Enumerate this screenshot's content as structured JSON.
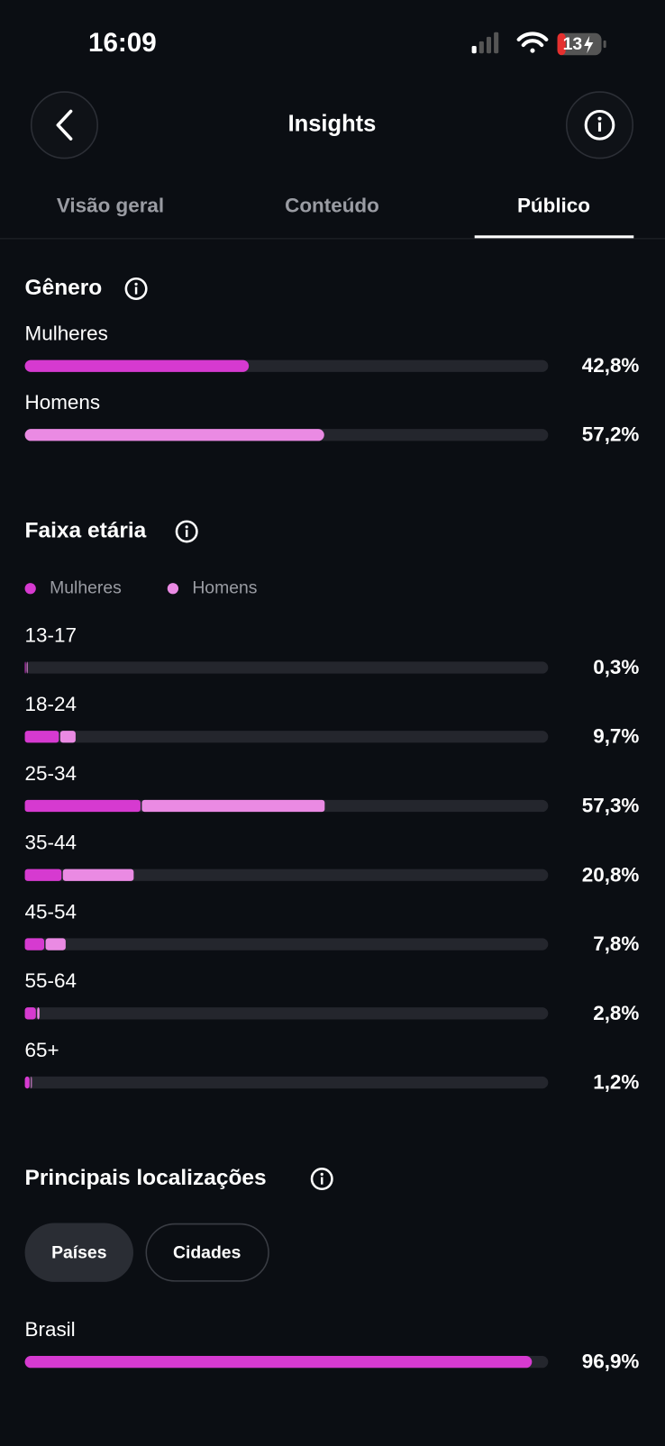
{
  "status_bar": {
    "time": "16:09",
    "battery": "13"
  },
  "header": {
    "title": "Insights"
  },
  "tabs": [
    "Visão geral",
    "Conteúdo",
    "Público"
  ],
  "gender": {
    "type": "bar",
    "title": "Gênero",
    "categories": [
      "Mulheres",
      "Homens"
    ],
    "values": [
      42.8,
      57.2
    ],
    "value_labels": [
      "42,8%",
      "57,2%"
    ],
    "colors": [
      "#d63ad0",
      "#ea8ae3"
    ],
    "xlim": [
      0,
      100
    ]
  },
  "age": {
    "type": "stacked-bar",
    "title": "Faixa etária",
    "categories": [
      "13-17",
      "18-24",
      "25-34",
      "35-44",
      "45-54",
      "55-64",
      "65+"
    ],
    "series": [
      {
        "name": "Mulheres",
        "color": "#d63ad0",
        "values": [
          0.1,
          6.5,
          22.1,
          7.0,
          3.7,
          2.1,
          0.9
        ]
      },
      {
        "name": "Homens",
        "color": "#ea8ae3",
        "values": [
          0.2,
          3.2,
          35.2,
          13.8,
          4.1,
          0.7,
          0.3
        ]
      }
    ],
    "total_labels": [
      "0,3%",
      "9,7%",
      "57,3%",
      "20,8%",
      "7,8%",
      "2,8%",
      "1,2%"
    ],
    "xlim": [
      0,
      100
    ]
  },
  "locations": {
    "type": "bar",
    "title": "Principais localizações",
    "filters": [
      "Países",
      "Cidades"
    ],
    "categories": [
      "Brasil"
    ],
    "values": [
      96.9
    ],
    "value_labels": [
      "96,9%"
    ],
    "color": "#d63ad0",
    "xlim": [
      0,
      100
    ]
  }
}
